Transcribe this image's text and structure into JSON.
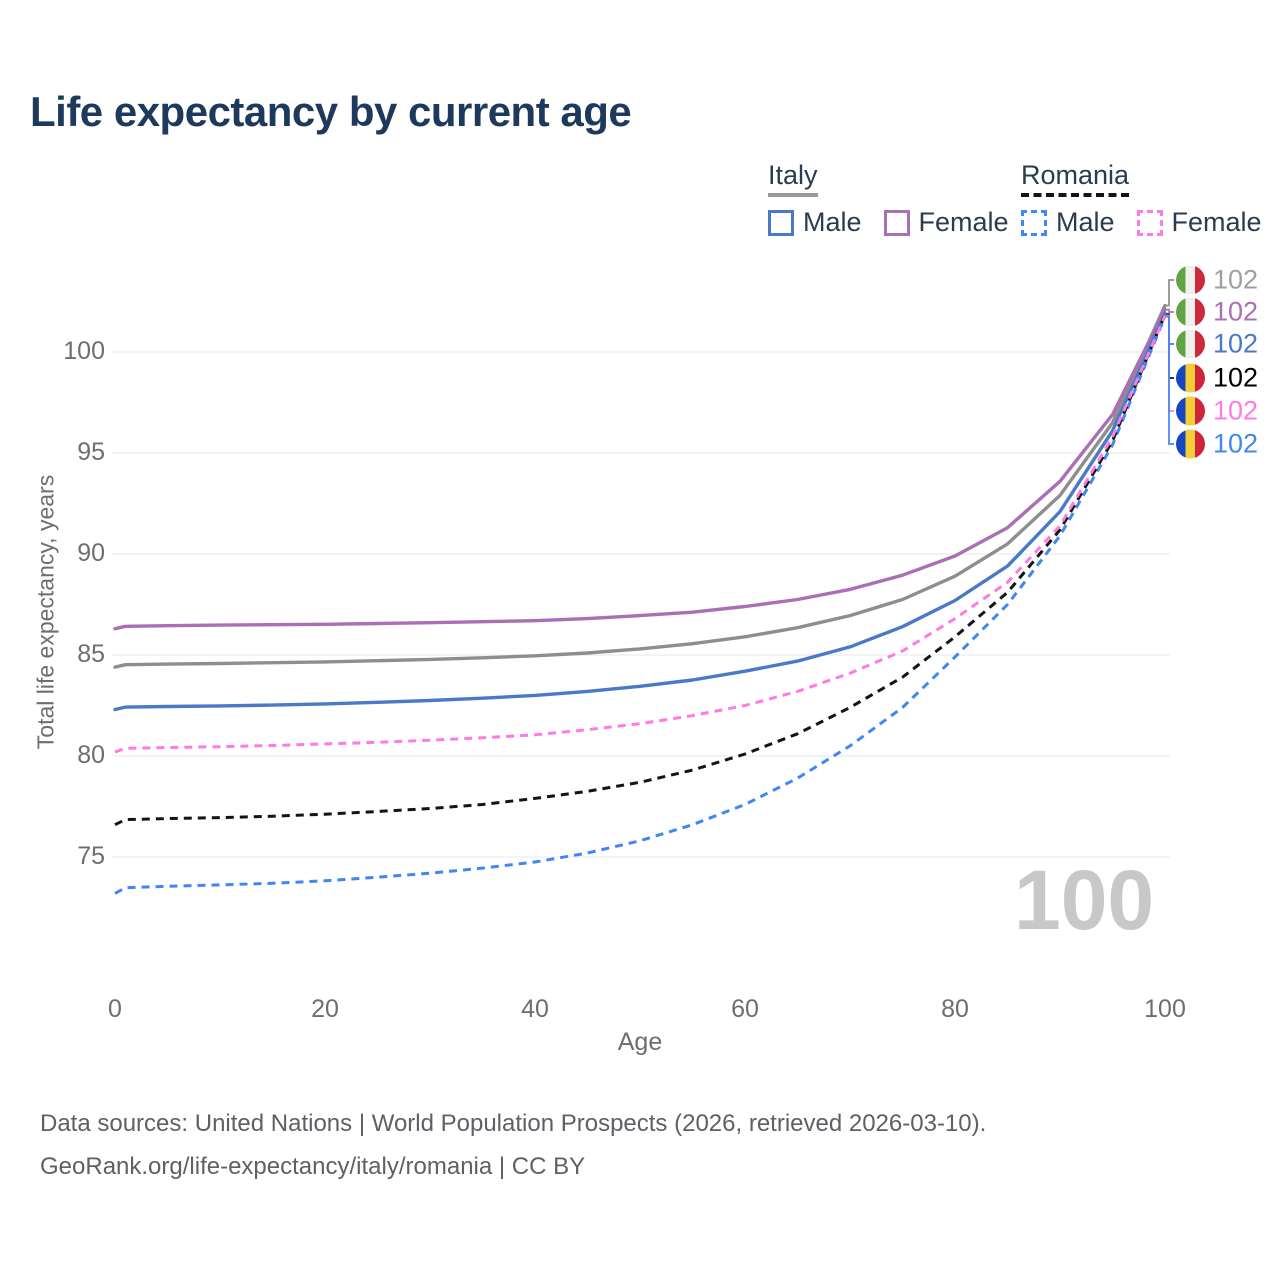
{
  "title": "Life expectancy by current age",
  "colors": {
    "title": "#1d3a5c",
    "legend_text": "#2b3c50",
    "axis_text": "#6e6e6e",
    "grid": "#ececec",
    "watermark": "#c8c8c8",
    "footer_text": "#5d6166"
  },
  "legend": {
    "groups": [
      {
        "name": "Italy",
        "underline_color": "#9b9b9b",
        "underline_style": "solid",
        "items": [
          {
            "label": "Male",
            "color": "#4a7ac7",
            "dashed": false
          },
          {
            "label": "Female",
            "color": "#ab6fb5",
            "dashed": false
          }
        ]
      },
      {
        "name": "Romania",
        "underline_color": "#141414",
        "underline_style": "dashed",
        "items": [
          {
            "label": "Male",
            "color": "#4186f5",
            "dashed": true
          },
          {
            "label": "Female",
            "color": "#ff7ae3",
            "dashed": true
          }
        ]
      }
    ]
  },
  "chart_data": {
    "type": "line",
    "xlabel": "Age",
    "ylabel": "Total life expectancy, years",
    "x": [
      0,
      1,
      5,
      10,
      15,
      20,
      25,
      30,
      35,
      40,
      45,
      50,
      55,
      60,
      65,
      70,
      75,
      80,
      85,
      90,
      95,
      100
    ],
    "xticks": [
      0,
      20,
      40,
      60,
      80,
      100
    ],
    "yticks": [
      75,
      80,
      85,
      90,
      95,
      100
    ],
    "xlim": [
      0,
      100
    ],
    "ylim": [
      72.5,
      103
    ],
    "grid": "horizontal",
    "legend_position": "top-right",
    "watermark": "100",
    "series": [
      {
        "name": "Italy",
        "color": "#8e8e8e",
        "label_color": "#a0a0a0",
        "dashed": false,
        "flag": "italy",
        "end_label": "102",
        "values": [
          84.4,
          84.52,
          84.55,
          84.58,
          84.62,
          84.66,
          84.72,
          84.78,
          84.86,
          84.96,
          85.1,
          85.3,
          85.56,
          85.9,
          86.35,
          86.95,
          87.75,
          88.9,
          90.5,
          92.9,
          96.5,
          102.3
        ]
      },
      {
        "name": "Italy Female",
        "color": "#ab6fb5",
        "label_color": "#ab6fb5",
        "dashed": false,
        "flag": "italy",
        "end_label": "102",
        "values": [
          86.3,
          86.42,
          86.45,
          86.48,
          86.5,
          86.52,
          86.56,
          86.6,
          86.65,
          86.7,
          86.8,
          86.95,
          87.12,
          87.4,
          87.75,
          88.25,
          88.95,
          89.9,
          91.3,
          93.6,
          96.9,
          102.1
        ]
      },
      {
        "name": "Italy Male",
        "color": "#4a7ac7",
        "label_color": "#4a7ac7",
        "dashed": false,
        "flag": "italy",
        "end_label": "102",
        "values": [
          82.3,
          82.42,
          82.45,
          82.48,
          82.52,
          82.58,
          82.66,
          82.75,
          82.86,
          83.0,
          83.2,
          83.45,
          83.76,
          84.2,
          84.7,
          85.4,
          86.4,
          87.7,
          89.4,
          92.1,
          96.1,
          101.9
        ]
      },
      {
        "name": "Romania",
        "color": "#141414",
        "label_color": "#000000",
        "dashed": true,
        "flag": "romania",
        "end_label": "102",
        "values": [
          76.6,
          76.85,
          76.9,
          76.95,
          77.02,
          77.12,
          77.25,
          77.4,
          77.6,
          77.9,
          78.25,
          78.7,
          79.3,
          80.1,
          81.1,
          82.4,
          83.9,
          85.9,
          88.1,
          91.2,
          95.6,
          101.85
        ]
      },
      {
        "name": "Romania Female",
        "color": "#ff7ae3",
        "label_color": "#ff7ae3",
        "dashed": true,
        "flag": "romania",
        "end_label": "102",
        "values": [
          80.2,
          80.38,
          80.42,
          80.46,
          80.52,
          80.6,
          80.68,
          80.78,
          80.9,
          81.05,
          81.3,
          81.6,
          82.0,
          82.5,
          83.2,
          84.1,
          85.2,
          86.8,
          88.6,
          91.4,
          95.8,
          101.8
        ]
      },
      {
        "name": "Romania Male",
        "color": "#4186f5",
        "label_color": "#4186f5",
        "dashed": true,
        "flag": "romania",
        "end_label": "102",
        "values": [
          73.2,
          73.48,
          73.55,
          73.62,
          73.7,
          73.82,
          74.0,
          74.2,
          74.45,
          74.75,
          75.2,
          75.8,
          76.6,
          77.6,
          78.9,
          80.5,
          82.4,
          84.9,
          87.5,
          90.9,
          95.4,
          101.75
        ]
      }
    ]
  },
  "footer": {
    "line1": "Data sources: United Nations | World Population Prospects (2026, retrieved 2026-03-10).",
    "line2": "GeoRank.org/life-expectancy/italy/romania | CC BY"
  }
}
